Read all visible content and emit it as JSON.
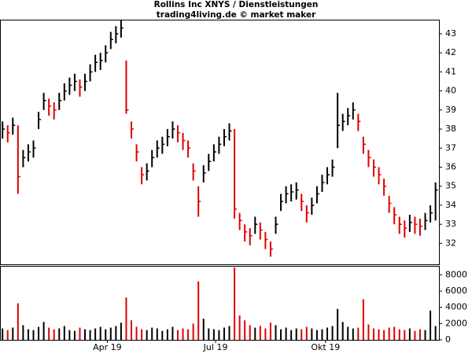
{
  "chart_data": [
    {
      "type": "ohlc",
      "title": "Rollins Inc XNYS / Dienstleistungen",
      "subtitle": "trading4living.de © market maker",
      "up_color": "#000000",
      "down_color": "#e00000",
      "xlim": [
        0,
        255
      ],
      "xticks": [
        {
          "value": 62,
          "label": "Apr 19"
        },
        {
          "value": 125,
          "label": "Jul 19"
        },
        {
          "value": 189,
          "label": "Okt 19"
        }
      ],
      "ylim": [
        30.9,
        43.7
      ],
      "yticks": [
        32,
        33,
        34,
        35,
        36,
        37,
        38,
        39,
        40,
        41,
        42,
        43
      ],
      "x": [
        1,
        4,
        7,
        10,
        13,
        16,
        19,
        22,
        25,
        28,
        31,
        34,
        37,
        40,
        43,
        46,
        49,
        52,
        55,
        58,
        61,
        64,
        67,
        70,
        73,
        76,
        79,
        82,
        85,
        88,
        91,
        94,
        97,
        100,
        103,
        106,
        109,
        112,
        115,
        118,
        121,
        124,
        127,
        130,
        133,
        136,
        139,
        142,
        145,
        148,
        151,
        154,
        157,
        160,
        163,
        166,
        169,
        172,
        175,
        178,
        181,
        184,
        187,
        190,
        193,
        196,
        199,
        202,
        205,
        208,
        211,
        214,
        217,
        220,
        223,
        226,
        229,
        232,
        235,
        238,
        241,
        244,
        247,
        250,
        253
      ],
      "close": [
        38,
        37.8,
        38.2,
        35.5,
        36.5,
        36.8,
        37,
        38.5,
        39.5,
        39.2,
        39,
        39.5,
        40,
        40.3,
        40.5,
        40.2,
        40.5,
        41,
        41.5,
        41.6,
        42,
        42.7,
        43,
        43.3,
        39,
        38,
        36.8,
        35.6,
        35.8,
        36.5,
        37,
        37.2,
        37.6,
        38,
        37.8,
        37.4,
        37,
        35.8,
        34.2,
        35.7,
        36.3,
        36.8,
        37.2,
        37.6,
        37.9,
        33.8,
        33.2,
        32.6,
        32.4,
        33,
        32.7,
        32.2,
        31.7,
        33,
        34.2,
        34.6,
        34.7,
        34.8,
        34.2,
        33.6,
        34,
        34.6,
        35.2,
        35.6,
        36,
        38.2,
        38.4,
        38.7,
        39,
        38.4,
        37.2,
        36.5,
        36,
        35.6,
        35,
        34.1,
        33.5,
        33,
        32.8,
        33.1,
        33,
        32.9,
        33.2,
        33.6,
        34.8
      ],
      "high": [
        38.4,
        38.2,
        38.6,
        38.2,
        36.9,
        37.2,
        37.4,
        38.9,
        39.9,
        39.6,
        39.4,
        39.9,
        40.4,
        40.7,
        40.9,
        40.6,
        40.9,
        41.4,
        41.9,
        42,
        42.4,
        43.1,
        43.4,
        43.7,
        41.6,
        38.4,
        37.2,
        36,
        36.2,
        36.9,
        37.4,
        37.6,
        38,
        38.4,
        38.2,
        37.8,
        37.4,
        36.2,
        35,
        36.1,
        36.7,
        37.2,
        37.6,
        38,
        38.3,
        38,
        33.6,
        33,
        32.8,
        33.4,
        33.1,
        32.6,
        32.1,
        33.4,
        34.6,
        35,
        35.1,
        35.2,
        34.6,
        34,
        34.4,
        35,
        35.6,
        36,
        36.4,
        39.9,
        38.8,
        39.1,
        39.4,
        38.8,
        37.6,
        36.9,
        36.4,
        36,
        35.4,
        34.5,
        33.9,
        33.4,
        33.2,
        33.5,
        33.4,
        33.3,
        33.6,
        34,
        35.2
      ],
      "low": [
        37.5,
        37.3,
        37.7,
        34.6,
        36,
        36.3,
        36.5,
        38,
        39,
        38.7,
        38.5,
        39,
        39.5,
        39.8,
        40,
        39.7,
        40,
        40.5,
        41,
        41.1,
        41.5,
        42.2,
        42.5,
        42.8,
        38.8,
        37.5,
        36.3,
        35.1,
        35.3,
        36,
        36.5,
        36.7,
        37.1,
        37.5,
        37.3,
        36.9,
        36.5,
        35.3,
        33.4,
        35.2,
        35.8,
        36.3,
        36.7,
        37.1,
        37.4,
        33.3,
        32.7,
        32.1,
        31.9,
        32.5,
        32.2,
        31.7,
        31.3,
        32.5,
        33.7,
        34.1,
        34.2,
        34.3,
        33.7,
        33.1,
        33.5,
        34.1,
        34.7,
        35.1,
        35.5,
        37,
        37.9,
        38.2,
        38.5,
        37.9,
        36.7,
        36,
        35.5,
        35.1,
        34.5,
        33.6,
        33,
        32.5,
        32.3,
        32.6,
        32.5,
        32.4,
        32.7,
        33.1,
        33.2
      ]
    },
    {
      "type": "volume",
      "ylim": [
        0,
        9000
      ],
      "yticks": [
        0,
        2000,
        4000,
        6000,
        8000
      ],
      "values": [
        1400,
        1200,
        1500,
        4500,
        1800,
        1300,
        1200,
        1600,
        2200,
        1500,
        1300,
        1400,
        1700,
        1200,
        1100,
        1500,
        1300,
        1200,
        1400,
        1600,
        1300,
        1500,
        1700,
        2100,
        5200,
        2400,
        1600,
        1300,
        1200,
        1500,
        1400,
        1100,
        1300,
        1600,
        1200,
        1400,
        1300,
        2000,
        7200,
        2600,
        1400,
        1300,
        1200,
        1500,
        1700,
        8900,
        3000,
        2400,
        1800,
        1500,
        1700,
        1400,
        2100,
        1800,
        1300,
        1500,
        1200,
        1400,
        1300,
        1600,
        1400,
        1200,
        1300,
        1500,
        1700,
        3800,
        2200,
        1600,
        1400,
        1500,
        5000,
        1900,
        1400,
        1300,
        1200,
        1500,
        1600,
        1300,
        1200,
        1400,
        1100,
        1300,
        1200,
        3600,
        1700
      ]
    }
  ]
}
